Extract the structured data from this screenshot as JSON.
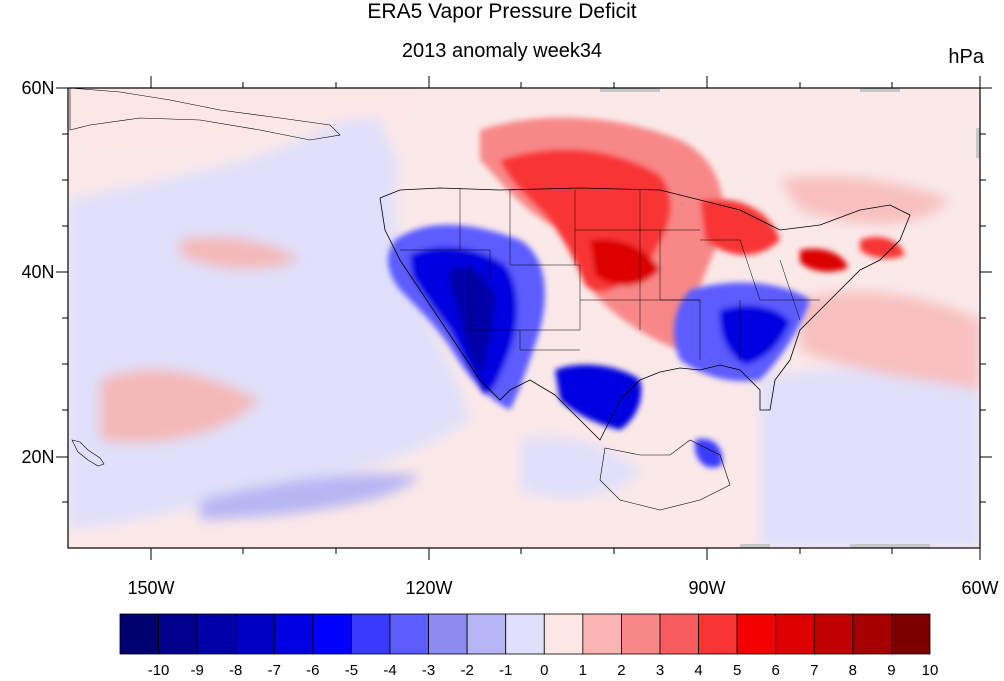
{
  "title": "ERA5 Vapor Pressure Deficit",
  "subtitle": "2013 anomaly week34",
  "units": "hPa",
  "lat_labels": [
    "60N",
    "40N",
    "20N"
  ],
  "lon_labels": [
    "150W",
    "120W",
    "90W",
    "60W"
  ],
  "colorbar": {
    "labels": [
      "-10",
      "-9",
      "-8",
      "-7",
      "-6",
      "-5",
      "-4",
      "-3",
      "-2",
      "-1",
      "0",
      "1",
      "2",
      "3",
      "4",
      "5",
      "6",
      "7",
      "8",
      "9",
      "10"
    ],
    "colors": [
      "#00006e",
      "#00008c",
      "#0000a8",
      "#0000c4",
      "#0000e0",
      "#0000ff",
      "#3a3aff",
      "#5c5cff",
      "#8c8cf0",
      "#b6b6f4",
      "#e0e0fa",
      "#fde6e6",
      "#fab4b4",
      "#f88888",
      "#f85c5c",
      "#f83434",
      "#f40000",
      "#dc0000",
      "#c00000",
      "#a40000",
      "#7c0000"
    ]
  },
  "map": {
    "background_anomaly_color": "#fbe9e9",
    "regions": [
      {
        "name": "north-pacific-pink",
        "color": "#fde6e6"
      },
      {
        "name": "subtropical-pacific-blue",
        "color": "#e0e0fa"
      },
      {
        "name": "southwest-us-dry-negative",
        "color": "#0000c4"
      },
      {
        "name": "great-plains-positive",
        "color": "#f83434"
      },
      {
        "name": "texas-negative",
        "color": "#0000ff"
      },
      {
        "name": "southeast-us-negative",
        "color": "#5c5cff"
      },
      {
        "name": "atlantic-positive",
        "color": "#f88888"
      }
    ]
  }
}
